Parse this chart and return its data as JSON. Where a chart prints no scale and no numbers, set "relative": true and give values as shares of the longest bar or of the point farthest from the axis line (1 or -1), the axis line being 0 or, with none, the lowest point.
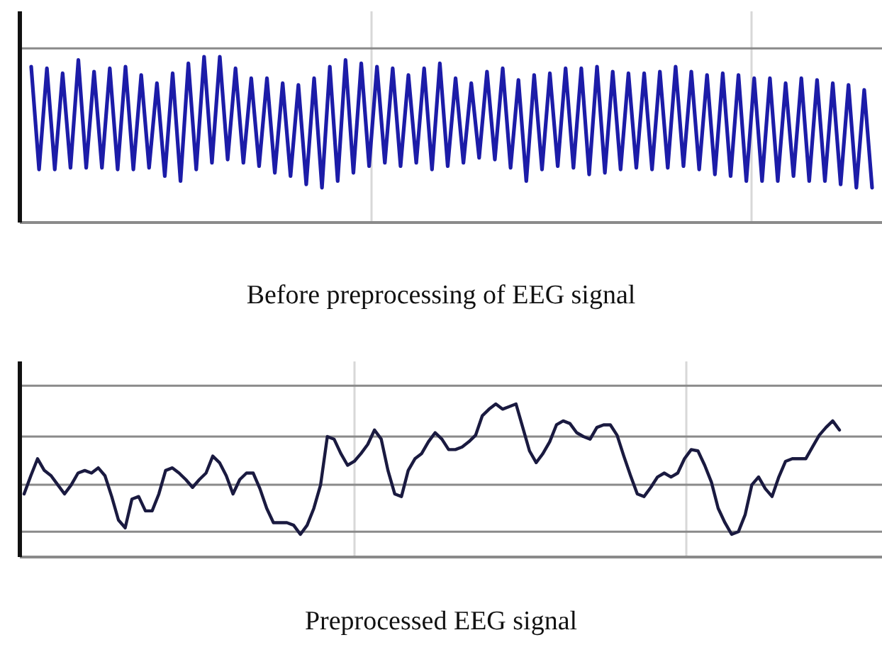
{
  "chart_data": [
    {
      "type": "line",
      "title": "Before preprocessing of EEG signal",
      "relative": true,
      "grid": "x",
      "ref_lines": [
        {
          "axis": "y",
          "value": 1.05,
          "color": "#8a8a8a"
        }
      ],
      "categories": [
        null,
        null,
        null,
        null,
        null,
        null,
        null,
        null,
        null,
        null,
        null,
        null,
        null,
        null,
        null,
        null,
        null,
        null,
        null,
        null,
        null,
        null,
        null,
        null,
        null,
        null,
        null,
        null,
        null,
        null,
        null,
        null,
        null,
        null,
        null,
        null,
        null,
        null,
        null,
        null,
        null,
        null,
        null,
        null,
        null,
        null,
        null,
        null,
        null,
        null,
        null,
        null,
        null,
        null,
        null,
        null,
        null,
        null,
        null,
        null,
        null,
        null,
        null,
        null,
        null,
        null,
        null,
        null,
        null,
        null,
        null,
        null,
        null,
        null,
        null,
        null,
        null,
        null,
        null,
        null,
        null,
        null,
        null,
        null,
        null,
        null,
        null,
        null,
        null,
        null,
        null,
        null,
        null,
        null,
        null,
        null,
        null,
        null,
        null,
        null,
        null,
        null,
        null,
        null,
        null,
        null,
        null,
        null
      ],
      "series": [
        {
          "color": "#1c1ca8",
          "values": [
            0.94,
            0.32,
            0.93,
            0.32,
            0.9,
            0.33,
            0.98,
            0.33,
            0.91,
            0.33,
            0.93,
            0.32,
            0.94,
            0.32,
            0.89,
            0.33,
            0.84,
            0.28,
            0.9,
            0.25,
            0.96,
            0.32,
            1,
            0.36,
            1,
            0.38,
            0.93,
            0.36,
            0.87,
            0.34,
            0.87,
            0.3,
            0.84,
            0.28,
            0.83,
            0.23,
            0.87,
            0.21,
            0.94,
            0.25,
            0.98,
            0.3,
            0.96,
            0.34,
            0.94,
            0.36,
            0.93,
            0.34,
            0.89,
            0.36,
            0.93,
            0.32,
            0.96,
            0.34,
            0.87,
            0.36,
            0.84,
            0.39,
            0.91,
            0.38,
            0.93,
            0.33,
            0.86,
            0.25,
            0.89,
            0.32,
            0.9,
            0.34,
            0.93,
            0.33,
            0.93,
            0.29,
            0.94,
            0.3,
            0.91,
            0.32,
            0.9,
            0.33,
            0.9,
            0.32,
            0.91,
            0.33,
            0.94,
            0.34,
            0.91,
            0.32,
            0.89,
            0.29,
            0.9,
            0.28,
            0.89,
            0.25,
            0.87,
            0.25,
            0.87,
            0.25,
            0.84,
            0.28,
            0.87,
            0.25,
            0.86,
            0.25,
            0.84,
            0.23,
            0.83,
            0.21,
            0.8,
            0.21
          ]
        }
      ]
    },
    {
      "type": "line",
      "title": "Preprocessed EEG signal",
      "relative": true,
      "grid": "x",
      "ref_lines": [
        {
          "axis": "y",
          "value": 1.14,
          "color": "#8a8a8a"
        },
        {
          "axis": "y",
          "value": 0.75,
          "color": "#8a8a8a"
        },
        {
          "axis": "y",
          "value": 0.38,
          "color": "#8a8a8a"
        },
        {
          "axis": "y",
          "value": 0.02,
          "color": "#8a8a8a"
        }
      ],
      "categories": [
        null,
        null,
        null,
        null,
        null,
        null,
        null,
        null,
        null,
        null,
        null,
        null,
        null,
        null,
        null,
        null,
        null,
        null,
        null,
        null,
        null,
        null,
        null,
        null,
        null,
        null,
        null,
        null,
        null,
        null,
        null,
        null,
        null,
        null,
        null,
        null,
        null,
        null,
        null,
        null,
        null,
        null,
        null,
        null,
        null,
        null,
        null,
        null,
        null,
        null,
        null,
        null,
        null,
        null,
        null,
        null,
        null,
        null,
        null,
        null,
        null,
        null,
        null,
        null,
        null,
        null,
        null,
        null,
        null,
        null,
        null,
        null,
        null,
        null,
        null,
        null,
        null,
        null,
        null,
        null,
        null,
        null,
        null,
        null,
        null,
        null,
        null,
        null,
        null,
        null,
        null,
        null,
        null,
        null,
        null,
        null,
        null,
        null,
        null,
        null,
        null,
        null,
        null,
        null,
        null,
        null,
        null,
        null,
        null,
        null,
        null,
        null,
        null,
        null,
        null,
        null,
        null,
        null,
        null,
        null,
        null,
        null
      ],
      "series": [
        {
          "color": "#1a1a40",
          "values": [
            0.31,
            0.45,
            0.58,
            0.49,
            0.45,
            0.38,
            0.31,
            0.38,
            0.47,
            0.49,
            0.47,
            0.51,
            0.45,
            0.29,
            0.11,
            0.05,
            0.27,
            0.29,
            0.18,
            0.18,
            0.31,
            0.49,
            0.51,
            0.47,
            0.42,
            0.36,
            0.42,
            0.47,
            0.6,
            0.55,
            0.45,
            0.31,
            0.42,
            0.47,
            0.47,
            0.35,
            0.2,
            0.09,
            0.09,
            0.09,
            0.07,
            0,
            0.07,
            0.2,
            0.38,
            0.75,
            0.73,
            0.62,
            0.53,
            0.56,
            0.62,
            0.69,
            0.8,
            0.73,
            0.49,
            0.31,
            0.29,
            0.49,
            0.58,
            0.62,
            0.71,
            0.78,
            0.73,
            0.65,
            0.65,
            0.67,
            0.71,
            0.76,
            0.91,
            0.96,
            1,
            0.96,
            0.98,
            1,
            0.82,
            0.64,
            0.55,
            0.62,
            0.71,
            0.84,
            0.87,
            0.85,
            0.78,
            0.75,
            0.73,
            0.82,
            0.84,
            0.84,
            0.76,
            0.6,
            0.45,
            0.31,
            0.29,
            0.36,
            0.44,
            0.47,
            0.44,
            0.47,
            0.58,
            0.65,
            0.64,
            0.53,
            0.4,
            0.2,
            0.09,
            0,
            0.02,
            0.15,
            0.38,
            0.44,
            0.35,
            0.29,
            0.44,
            0.56,
            0.58,
            0.58,
            0.58,
            0.67,
            0.76,
            0.82,
            0.87,
            0.8
          ]
        }
      ]
    }
  ]
}
